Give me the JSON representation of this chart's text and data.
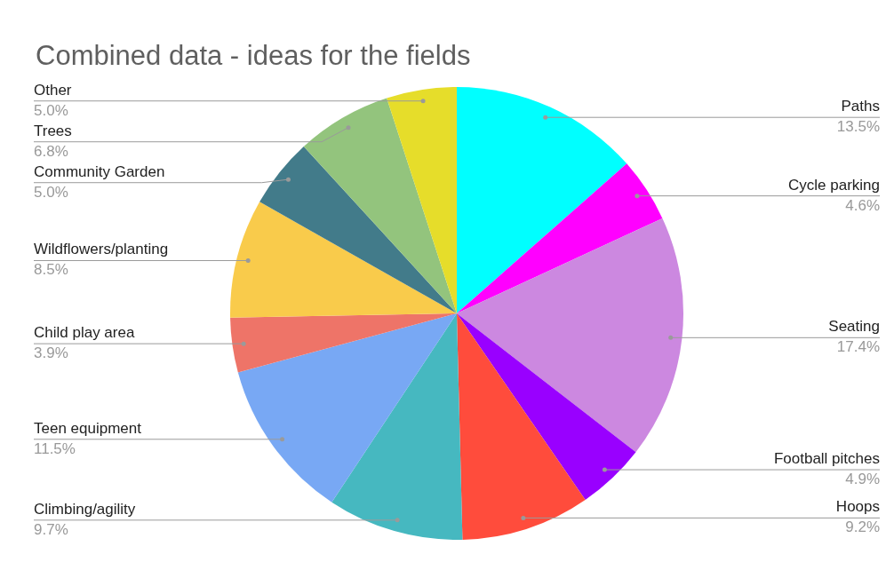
{
  "chart_data": {
    "type": "pie",
    "title": "Combined data - ideas for the fields",
    "categories": [
      "Paths",
      "Cycle parking",
      "Seating",
      "Football pitches",
      "Hoops",
      "Climbing/agility",
      "Teen equipment",
      "Child play area",
      "Wildflowers/planting",
      "Community Garden",
      "Trees",
      "Other"
    ],
    "values": [
      13.5,
      4.6,
      17.4,
      4.9,
      9.2,
      9.7,
      11.5,
      3.9,
      8.5,
      5.0,
      6.8,
      5.0
    ],
    "value_labels": [
      "13.5%",
      "4.6%",
      "17.4%",
      "4.9%",
      "9.2%",
      "9.7%",
      "11.5%",
      "3.9%",
      "8.5%",
      "5.0%",
      "6.8%",
      "5.0%"
    ],
    "colors": [
      "#00ffff",
      "#ff00ff",
      "#cc88e0",
      "#9900ff",
      "#ff4c3c",
      "#46b8c0",
      "#78a8f4",
      "#ee7468",
      "#f9cb4b",
      "#427b8a",
      "#93c47d",
      "#e6dd2a"
    ]
  }
}
